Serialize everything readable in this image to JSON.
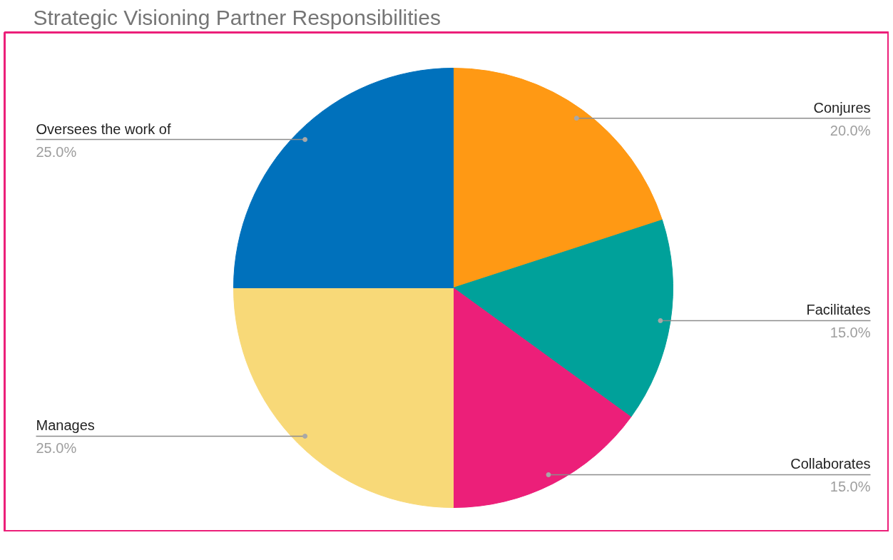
{
  "chart_data": {
    "type": "pie",
    "title": "Strategic Visioning Partner Responsibilities",
    "categories": [
      "Conjures",
      "Facilitates",
      "Collaborates",
      "Manages",
      "Oversees the work of"
    ],
    "values": [
      20,
      15,
      15,
      25,
      25
    ],
    "colors": [
      "#ff9914",
      "#00a19a",
      "#ec1f79",
      "#f8d978",
      "#0071bc"
    ],
    "value_labels": [
      "20.0%",
      "15.0%",
      "15.0%",
      "25.0%",
      "25.0%"
    ]
  }
}
